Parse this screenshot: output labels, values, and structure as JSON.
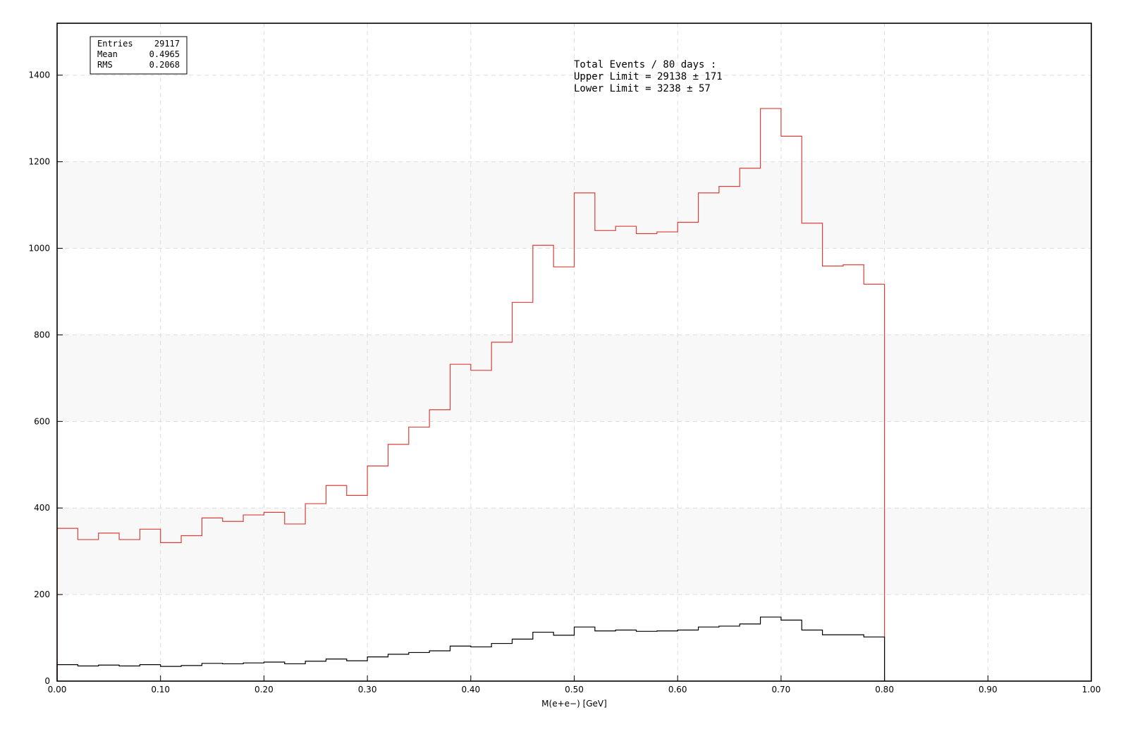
{
  "chart_data": {
    "type": "histogram",
    "title": "",
    "xlabel": "M(e+e−) [GeV]",
    "ylabel": "",
    "xlim": [
      0,
      1.0
    ],
    "ylim": [
      0,
      1520
    ],
    "grid": true,
    "x_ticks": [
      "0.00",
      "0.10",
      "0.20",
      "0.30",
      "0.40",
      "0.50",
      "0.60",
      "0.70",
      "0.80",
      "0.90",
      "1.00"
    ],
    "y_ticks": [
      "0",
      "200",
      "400",
      "600",
      "800",
      "1000",
      "1200",
      "1400"
    ],
    "bin_edges": [
      0.0,
      0.02,
      0.04,
      0.06,
      0.08,
      0.1,
      0.12,
      0.14,
      0.16,
      0.18,
      0.2,
      0.22,
      0.24,
      0.26,
      0.28,
      0.3,
      0.32,
      0.34,
      0.36,
      0.38,
      0.4,
      0.42,
      0.44,
      0.46,
      0.48,
      0.5,
      0.52,
      0.54,
      0.56,
      0.58,
      0.6,
      0.62,
      0.64,
      0.66,
      0.68,
      0.7,
      0.72,
      0.74,
      0.76,
      0.78,
      0.8
    ],
    "series": [
      {
        "color": "#d9403a",
        "values": [
          353,
          327,
          342,
          327,
          351,
          320,
          336,
          377,
          369,
          384,
          390,
          363,
          410,
          452,
          429,
          497,
          547,
          587,
          627,
          732,
          718,
          783,
          875,
          1007,
          957,
          1128,
          1041,
          1051,
          1034,
          1038,
          1060,
          1128,
          1143,
          1185,
          1323,
          1259,
          1058,
          959,
          962,
          917
        ]
      },
      {
        "color": "#000000",
        "values": [
          38,
          35,
          37,
          35,
          38,
          34,
          36,
          41,
          40,
          42,
          44,
          40,
          46,
          51,
          47,
          56,
          62,
          66,
          70,
          81,
          79,
          87,
          97,
          113,
          106,
          125,
          116,
          118,
          115,
          116,
          118,
          125,
          127,
          132,
          148,
          141,
          118,
          107,
          107,
          102
        ]
      }
    ],
    "stats_box": [
      {
        "label": "Entries",
        "value": "29117"
      },
      {
        "label": "Mean",
        "value": "0.4965"
      },
      {
        "label": "RMS",
        "value": "0.2068"
      }
    ],
    "annotations": [
      "Total Events / 80 days :",
      "Upper Limit = 29138 ± 171",
      "Lower Limit = 3238 ± 57"
    ]
  }
}
